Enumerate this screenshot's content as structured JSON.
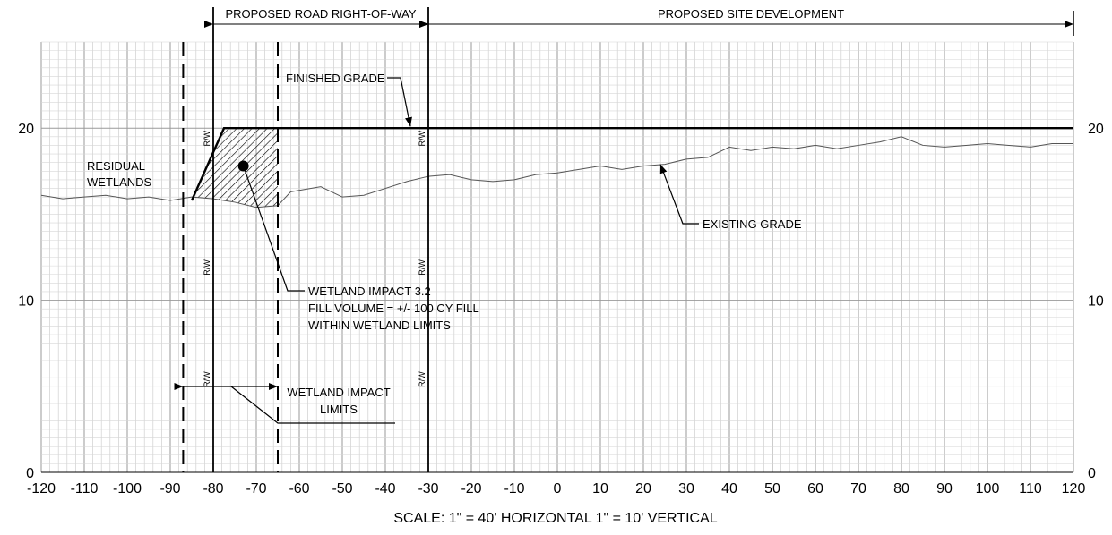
{
  "chart_data": {
    "type": "section",
    "xlim": [
      -120,
      120
    ],
    "ylim": [
      0,
      25
    ],
    "x_ticks": [
      -120,
      -110,
      -100,
      -90,
      -80,
      -70,
      -60,
      -50,
      -40,
      -30,
      -20,
      -10,
      0,
      10,
      20,
      30,
      40,
      50,
      60,
      70,
      80,
      90,
      100,
      110,
      120
    ],
    "y_ticks": [
      0,
      10,
      20
    ],
    "finished_grade": {
      "points": [
        [
          -85,
          15.8
        ],
        [
          -77.5,
          20
        ],
        [
          120,
          20
        ]
      ]
    },
    "existing_grade": {
      "points": [
        [
          -120,
          16.1
        ],
        [
          -115,
          15.9
        ],
        [
          -110,
          16.0
        ],
        [
          -105,
          16.1
        ],
        [
          -100,
          15.9
        ],
        [
          -95,
          16.0
        ],
        [
          -90,
          15.8
        ],
        [
          -85,
          16.0
        ],
        [
          -80,
          15.9
        ],
        [
          -75,
          15.7
        ],
        [
          -70,
          15.4
        ],
        [
          -65,
          15.5
        ],
        [
          -62,
          16.3
        ],
        [
          -55,
          16.6
        ],
        [
          -50,
          16.0
        ],
        [
          -45,
          16.1
        ],
        [
          -40,
          16.5
        ],
        [
          -35,
          16.9
        ],
        [
          -30,
          17.2
        ],
        [
          -25,
          17.3
        ],
        [
          -20,
          17.0
        ],
        [
          -15,
          16.9
        ],
        [
          -10,
          17.0
        ],
        [
          -5,
          17.3
        ],
        [
          0,
          17.4
        ],
        [
          5,
          17.6
        ],
        [
          10,
          17.8
        ],
        [
          15,
          17.6
        ],
        [
          20,
          17.8
        ],
        [
          25,
          17.9
        ],
        [
          30,
          18.2
        ],
        [
          35,
          18.3
        ],
        [
          40,
          18.9
        ],
        [
          45,
          18.7
        ],
        [
          50,
          18.9
        ],
        [
          55,
          18.8
        ],
        [
          60,
          19.0
        ],
        [
          65,
          18.8
        ],
        [
          70,
          19.0
        ],
        [
          75,
          19.2
        ],
        [
          80,
          19.5
        ],
        [
          85,
          19.0
        ],
        [
          90,
          18.9
        ],
        [
          95,
          19.0
        ],
        [
          100,
          19.1
        ],
        [
          105,
          19.0
        ],
        [
          110,
          18.9
        ],
        [
          115,
          19.1
        ],
        [
          120,
          19.1
        ]
      ]
    },
    "right_of_way_lines_x": [
      -80,
      -30
    ],
    "wetland_impact_limits_x": [
      -87,
      -65
    ],
    "impact_point": [
      -73,
      17.8
    ],
    "row_marker_label": "R/W",
    "scale_note": "SCALE: 1\" = 40' HORIZONTAL 1\" = 10' VERTICAL",
    "labels": {
      "proposed_row": "PROPOSED ROAD RIGHT-OF-WAY",
      "proposed_site": "PROPOSED SITE DEVELOPMENT",
      "finished_grade": "FINISHED GRADE",
      "existing_grade": "EXISTING GRADE",
      "residual_wetlands": [
        "RESIDUAL",
        "WETLANDS"
      ],
      "wetland_impact": [
        "WETLAND IMPACT 3.2",
        "FILL VOLUME = +/- 100 CY FILL",
        "WITHIN WETLAND LIMITS"
      ],
      "wetland_impact_limits": [
        "WETLAND IMPACT",
        "LIMITS"
      ]
    }
  }
}
